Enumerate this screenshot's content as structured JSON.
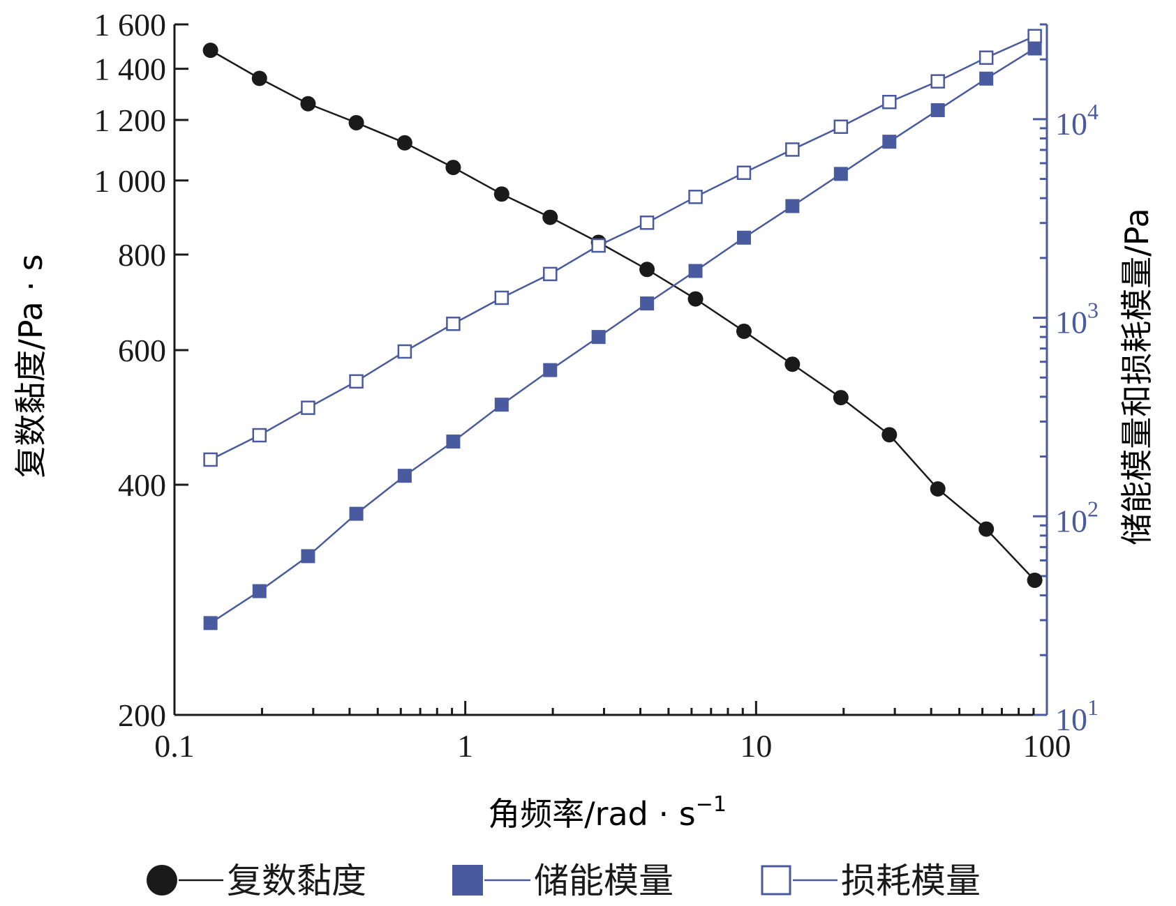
{
  "chart_data": {
    "type": "line",
    "xlabel": "角频率/rad · s",
    "xlabel_sup": "−1",
    "ylabel_left": "复数黏度/Pa · s",
    "ylabel_right": "储能模量和损耗模量/Pa",
    "x_scale": "log",
    "xlim": [
      0.1,
      100
    ],
    "x_ticks": [
      0.1,
      1,
      10,
      100
    ],
    "x_tick_labels": [
      "0.1",
      "1",
      "10",
      "100"
    ],
    "y_left_scale": "log",
    "y_left_lim": [
      200,
      1600
    ],
    "y_left_ticks": [
      200,
      400,
      600,
      800,
      1000,
      1200,
      1400,
      1600
    ],
    "y_left_tick_labels": [
      "200",
      "400",
      "600",
      "800",
      "1 000",
      "1 200",
      "1 400",
      "1 600"
    ],
    "y_right_scale": "log",
    "y_right_lim": [
      10,
      30000
    ],
    "y_right_ticks": [
      10,
      100,
      1000,
      10000
    ],
    "y_right_tick_base": [
      "10",
      "10",
      "10",
      "10"
    ],
    "y_right_tick_exp": [
      "1",
      "2",
      "3",
      "4"
    ],
    "grid": false,
    "legend_position": "bottom",
    "colors": {
      "black": "#1a1a1a",
      "blue": "#4a5a9e"
    },
    "x": [
      0.133,
      0.196,
      0.288,
      0.422,
      0.619,
      0.909,
      1.334,
      1.958,
      2.873,
      4.217,
      6.19,
      9.085,
      13.33,
      19.57,
      28.73,
      42.16,
      61.89,
      90.84
    ],
    "series": [
      {
        "name": "复数黏度",
        "axis": "left",
        "marker": "circle",
        "values": [
          1480,
          1360,
          1260,
          1190,
          1120,
          1040,
          960,
          895,
          830,
          765,
          700,
          635,
          575,
          520,
          465,
          395,
          350,
          300
        ]
      },
      {
        "name": "储能模量",
        "axis": "right",
        "marker": "square-filled",
        "values": [
          29,
          42,
          63,
          103,
          160,
          238,
          365,
          545,
          800,
          1180,
          1720,
          2530,
          3650,
          5300,
          7700,
          11100,
          16000,
          22700
        ]
      },
      {
        "name": "损耗模量",
        "axis": "right",
        "marker": "square-open",
        "values": [
          193,
          256,
          352,
          478,
          676,
          932,
          1260,
          1660,
          2310,
          3010,
          4060,
          5370,
          7030,
          9160,
          12200,
          15500,
          20400,
          26200
        ]
      }
    ]
  }
}
